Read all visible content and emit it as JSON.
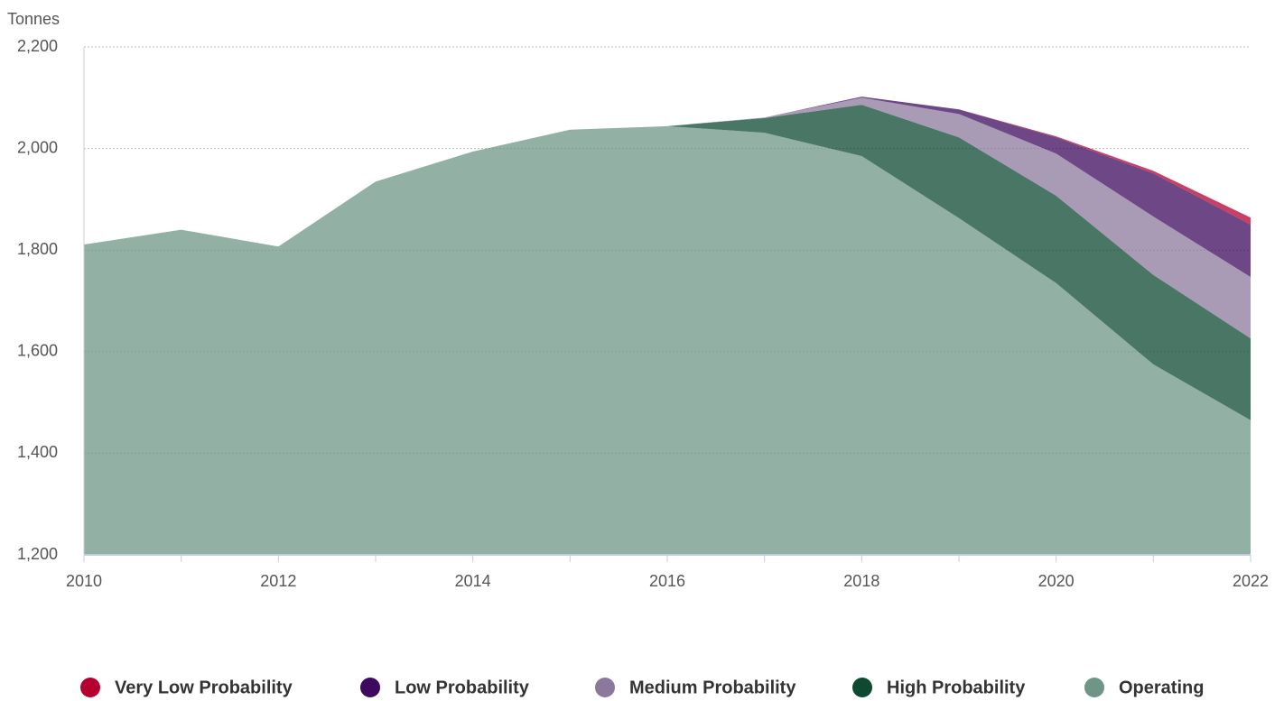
{
  "chart_data": {
    "type": "stacked_area",
    "y_label": "Tonnes",
    "x": [
      2010,
      2011,
      2012,
      2013,
      2014,
      2015,
      2016,
      2017,
      2018,
      2019,
      2020,
      2021,
      2022
    ],
    "series": [
      {
        "name": "Very Low Probability",
        "color": "#b5002f",
        "values": [
          0,
          0,
          0,
          0,
          0,
          0,
          0,
          0,
          0,
          0,
          2,
          5,
          14
        ]
      },
      {
        "name": "Low Probability",
        "color": "#3c0a5e",
        "values": [
          0,
          0,
          0,
          0,
          0,
          0,
          0,
          0,
          2,
          9,
          32,
          85,
          103
        ]
      },
      {
        "name": "Medium Probability",
        "color": "#8c789c",
        "values": [
          0,
          0,
          0,
          0,
          0,
          0,
          0,
          1,
          14,
          46,
          83,
          115,
          121
        ]
      },
      {
        "name": "High Probability",
        "color": "#0e4a32",
        "values": [
          0,
          0,
          0,
          0,
          0,
          0,
          0,
          29,
          101,
          159,
          172,
          176,
          161
        ]
      },
      {
        "name": "Operating",
        "color": "#6f9587",
        "values": [
          1811,
          1840,
          1807,
          1935,
          1994,
          2037,
          2044,
          2031,
          1985,
          1863,
          1735,
          1575,
          1465
        ]
      }
    ],
    "xlim": [
      2010,
      2022
    ],
    "xticks": [
      2010,
      2012,
      2014,
      2016,
      2018,
      2020,
      2022
    ],
    "ylim": [
      1200,
      2200
    ],
    "yticks": [
      {
        "value": 1200,
        "label": "1,200"
      },
      {
        "value": 1400,
        "label": "1,400"
      },
      {
        "value": 1600,
        "label": "1,600"
      },
      {
        "value": 1800,
        "label": "1,800"
      },
      {
        "value": 2000,
        "label": "2,000"
      },
      {
        "value": 2200,
        "label": "2,200"
      }
    ],
    "grid": true,
    "legend": "bottom"
  }
}
